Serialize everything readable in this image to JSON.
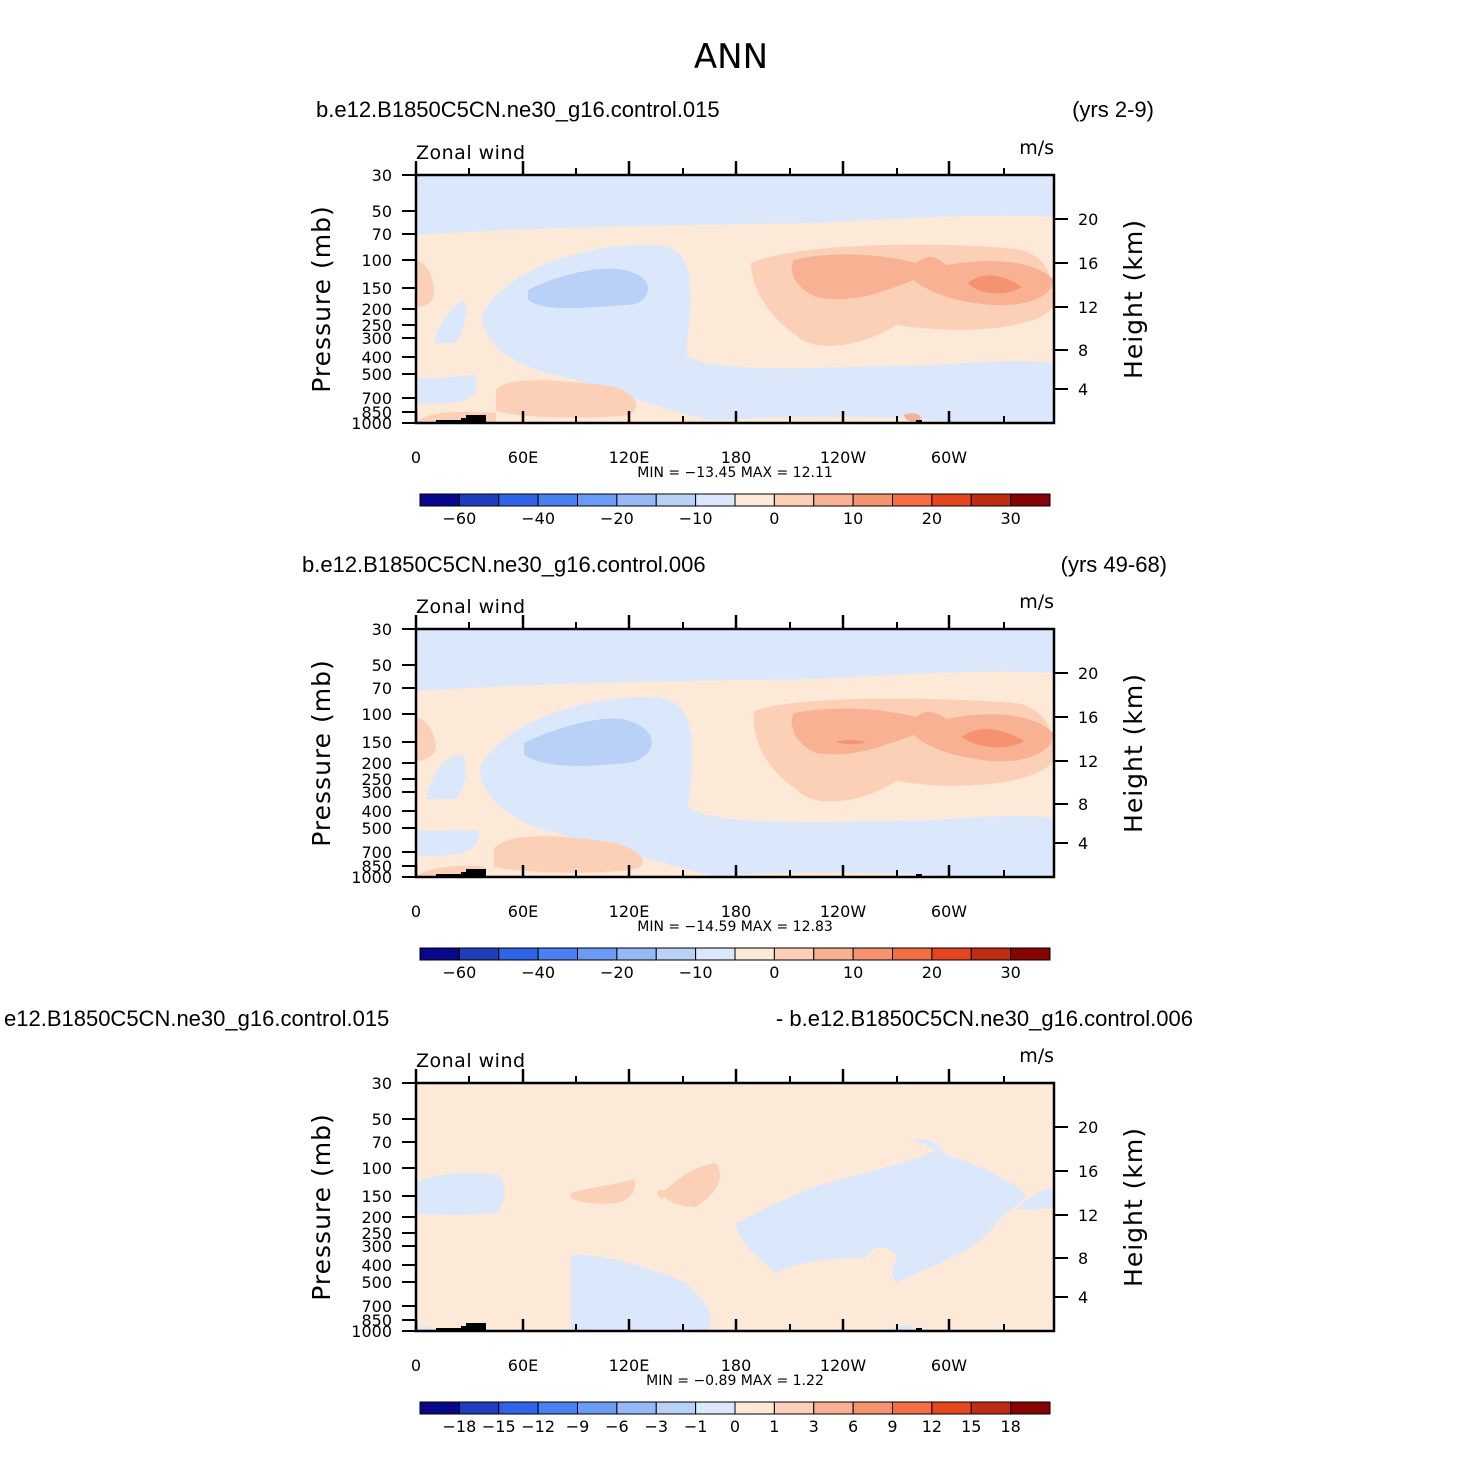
{
  "figure": {
    "title": "ANN"
  },
  "colors": {
    "default_palette": [
      "#08088a",
      "#1f3fba",
      "#2f64e6",
      "#4a80f0",
      "#6b9bf5",
      "#96b8f5",
      "#bad1f7",
      "#dbe8fb",
      "#fde9d8",
      "#fbd0b6",
      "#f8b192",
      "#f59371",
      "#f36d45",
      "#e6461f",
      "#bf2c12",
      "#850404"
    ],
    "land": "#000000",
    "frame": "#000000"
  },
  "chart_data": [
    {
      "type": "heatmap",
      "case_name": "b.e12.B1850C5CN.ne30_g16.control.015",
      "years": "(yrs 2-9)",
      "variable": "Zonal wind",
      "units": "m/s",
      "ylabel": "Pressure (mb)",
      "ylabel_right": "Height (km)",
      "x_ticks": [
        "0",
        "60E",
        "120E",
        "180",
        "120W",
        "60W"
      ],
      "y_ticks": [
        "30",
        "50",
        "70",
        "100",
        "150",
        "200",
        "250",
        "300",
        "400",
        "500",
        "700",
        "850",
        "1000"
      ],
      "y_ticks_right": [
        "20",
        "16",
        "12",
        "8",
        "4"
      ],
      "min_max": "MIN = −13.45   MAX =   12.11",
      "min": -13.45,
      "max": 12.11,
      "colorbar_labels": [
        "−60",
        "−40",
        "−20",
        "−10",
        "0",
        "10",
        "20",
        "30"
      ],
      "background_level": "#fde9d8"
    },
    {
      "type": "heatmap",
      "case_name": "b.e12.B1850C5CN.ne30_g16.control.006",
      "years": "(yrs 49-68)",
      "variable": "Zonal wind",
      "units": "m/s",
      "ylabel": "Pressure (mb)",
      "ylabel_right": "Height (km)",
      "x_ticks": [
        "0",
        "60E",
        "120E",
        "180",
        "120W",
        "60W"
      ],
      "y_ticks": [
        "30",
        "50",
        "70",
        "100",
        "150",
        "200",
        "250",
        "300",
        "400",
        "500",
        "700",
        "850",
        "1000"
      ],
      "y_ticks_right": [
        "20",
        "16",
        "12",
        "8",
        "4"
      ],
      "min_max": "MIN = −14.59   MAX =   12.83",
      "min": -14.59,
      "max": 12.83,
      "colorbar_labels": [
        "−60",
        "−40",
        "−20",
        "−10",
        "0",
        "10",
        "20",
        "30"
      ],
      "background_level": "#fde9d8"
    },
    {
      "type": "heatmap",
      "case_name": "e12.B1850C5CN.ne30_g16.control.015",
      "years": "- b.e12.B1850C5CN.ne30_g16.control.006",
      "variable": "Zonal wind",
      "units": "m/s",
      "ylabel": "Pressure (mb)",
      "ylabel_right": "Height (km)",
      "x_ticks": [
        "0",
        "60E",
        "120E",
        "180",
        "120W",
        "60W"
      ],
      "y_ticks": [
        "30",
        "50",
        "70",
        "100",
        "150",
        "200",
        "250",
        "300",
        "400",
        "500",
        "700",
        "850",
        "1000"
      ],
      "y_ticks_right": [
        "20",
        "16",
        "12",
        "8",
        "4"
      ],
      "min_max": "MIN =    −0.89   MAX =     1.22",
      "min": -0.89,
      "max": 1.22,
      "colorbar_labels": [
        "−18",
        "−15",
        "−12",
        "−9",
        "−6",
        "−3",
        "−1",
        "0",
        "1",
        "3",
        "6",
        "9",
        "12",
        "15",
        "18"
      ],
      "background_level": "#fde9d8"
    }
  ]
}
